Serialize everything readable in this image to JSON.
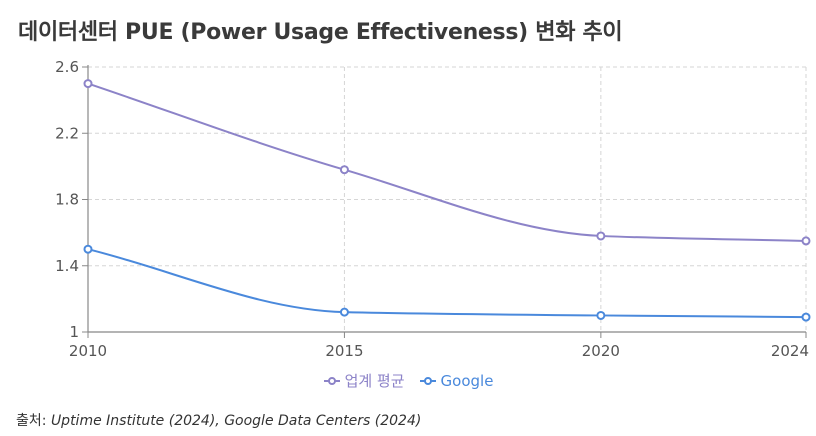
{
  "title": "데이터센터 PUE (Power Usage Effectiveness) 변화 추이",
  "source": {
    "label": "출처:",
    "text": "Uptime Institute (2024), Google Data Centers (2024)"
  },
  "chart_data": {
    "type": "line",
    "title": "데이터센터 PUE (Power Usage Effectiveness) 변화 추이",
    "x": [
      2010,
      2015,
      2020,
      2024
    ],
    "x_tick_labels": [
      "2010",
      "2015",
      "2020",
      "2024"
    ],
    "y_tick_labels": [
      "1",
      "1.4",
      "1.8",
      "2.2",
      "2.6"
    ],
    "y_ticks": [
      1.0,
      1.4,
      1.8,
      2.2,
      2.6
    ],
    "xlim": [
      2010,
      2024
    ],
    "ylim": [
      1.0,
      2.6
    ],
    "grid": true,
    "legend_position": "bottom",
    "series": [
      {
        "name": "업계 평균",
        "color": "#8c83c8",
        "values": [
          2.5,
          1.98,
          1.58,
          1.55
        ]
      },
      {
        "name": "Google",
        "color": "#4a89dc",
        "values": [
          1.5,
          1.12,
          1.1,
          1.09
        ]
      }
    ]
  }
}
